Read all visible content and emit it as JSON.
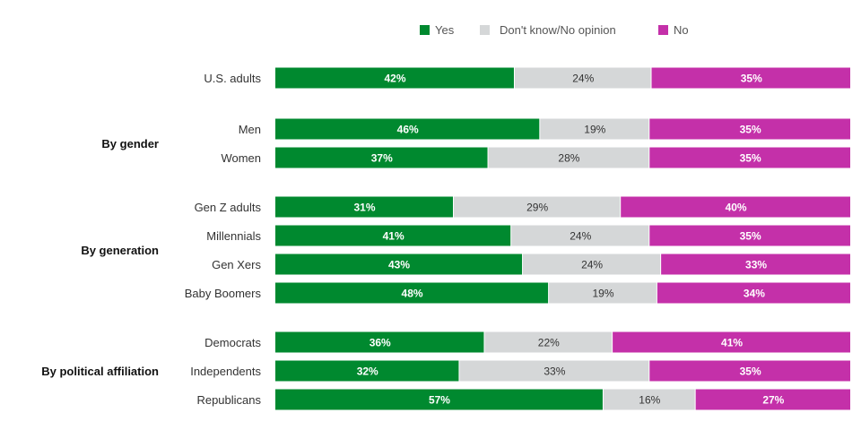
{
  "chart_data": {
    "type": "bar",
    "orientation": "horizontal",
    "stacked": true,
    "normalized": true,
    "legend": {
      "position": "top-right"
    },
    "series": [
      {
        "name": "Yes",
        "color": "#00892f",
        "label_style": "dark"
      },
      {
        "name": "Don't know/No opinion",
        "color": "#d5d7d8",
        "label_style": "light"
      },
      {
        "name": "No",
        "color": "#c430a9",
        "label_style": "dark"
      }
    ],
    "groups": [
      {
        "label": "",
        "rows": [
          {
            "category": "U.S. adults",
            "values": [
              42,
              24,
              35
            ],
            "labels": [
              "42%",
              "24%",
              "35%"
            ]
          }
        ]
      },
      {
        "label": "By gender",
        "rows": [
          {
            "category": "Men",
            "values": [
              46,
              19,
              35
            ],
            "labels": [
              "46%",
              "19%",
              "35%"
            ]
          },
          {
            "category": "Women",
            "values": [
              37,
              28,
              35
            ],
            "labels": [
              "37%",
              "28%",
              "35%"
            ]
          }
        ]
      },
      {
        "label": "By generation",
        "rows": [
          {
            "category": "Gen Z adults",
            "values": [
              31,
              29,
              40
            ],
            "labels": [
              "31%",
              "29%",
              "40%"
            ]
          },
          {
            "category": "Millennials",
            "values": [
              41,
              24,
              35
            ],
            "labels": [
              "41%",
              "24%",
              "35%"
            ]
          },
          {
            "category": "Gen Xers",
            "values": [
              43,
              24,
              33
            ],
            "labels": [
              "43%",
              "24%",
              "33%"
            ]
          },
          {
            "category": "Baby Boomers",
            "values": [
              48,
              19,
              34
            ],
            "labels": [
              "48%",
              "19%",
              "34%"
            ]
          }
        ]
      },
      {
        "label": "By political affiliation",
        "rows": [
          {
            "category": "Democrats",
            "values": [
              36,
              22,
              41
            ],
            "labels": [
              "36%",
              "22%",
              "41%"
            ]
          },
          {
            "category": "Independents",
            "values": [
              32,
              33,
              35
            ],
            "labels": [
              "32%",
              "33%",
              "35%"
            ]
          },
          {
            "category": "Republicans",
            "values": [
              57,
              16,
              27
            ],
            "labels": [
              "57%",
              "16%",
              "27%"
            ]
          }
        ]
      }
    ]
  }
}
